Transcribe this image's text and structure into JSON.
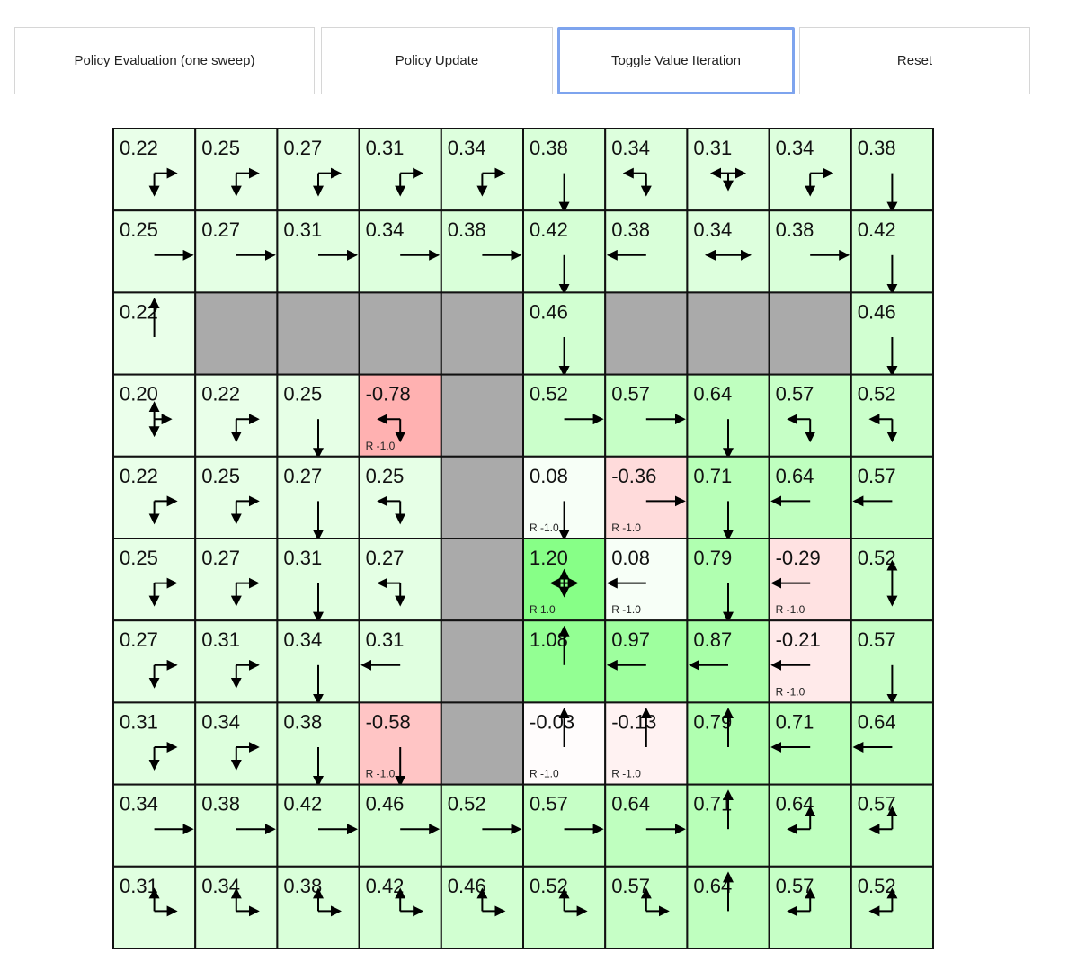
{
  "toolbar": {
    "buttons": [
      {
        "label": "Policy Evaluation (one sweep)"
      },
      {
        "label": "Policy Update"
      },
      {
        "label": "Toggle Value Iteration",
        "focused": true
      },
      {
        "label": "Reset"
      }
    ]
  },
  "gridworld": {
    "colors": {
      "wall": "#aaaaaa",
      "border": "#111111",
      "arrow": "#000000"
    },
    "values": [
      [
        "0.22",
        "0.25",
        "0.27",
        "0.31",
        "0.34",
        "0.38",
        "0.34",
        "0.31",
        "0.34",
        "0.38"
      ],
      [
        "0.25",
        "0.27",
        "0.31",
        "0.34",
        "0.38",
        "0.42",
        "0.38",
        "0.34",
        "0.38",
        "0.42"
      ],
      [
        "0.22",
        null,
        null,
        null,
        null,
        "0.46",
        null,
        null,
        null,
        "0.46"
      ],
      [
        "0.20",
        "0.22",
        "0.25",
        "-0.78",
        null,
        "0.52",
        "0.57",
        "0.64",
        "0.57",
        "0.52"
      ],
      [
        "0.22",
        "0.25",
        "0.27",
        "0.25",
        null,
        "0.08",
        "-0.36",
        "0.71",
        "0.64",
        "0.57"
      ],
      [
        "0.25",
        "0.27",
        "0.31",
        "0.27",
        null,
        "1.20",
        "0.08",
        "0.79",
        "-0.29",
        "0.52"
      ],
      [
        "0.27",
        "0.31",
        "0.34",
        "0.31",
        null,
        "1.08",
        "0.97",
        "0.87",
        "-0.21",
        "0.57"
      ],
      [
        "0.31",
        "0.34",
        "0.38",
        "-0.58",
        null,
        "-0.03",
        "-0.13",
        "0.79",
        "0.71",
        "0.64"
      ],
      [
        "0.34",
        "0.38",
        "0.42",
        "0.46",
        "0.52",
        "0.57",
        "0.64",
        "0.71",
        "0.64",
        "0.57"
      ],
      [
        "0.31",
        "0.34",
        "0.38",
        "0.42",
        "0.46",
        "0.52",
        "0.57",
        "0.64",
        "0.57",
        "0.52"
      ]
    ],
    "policy": [
      [
        "rd",
        "rd",
        "rd",
        "rd",
        "rd",
        "d",
        "ld",
        "lrd",
        "rd",
        "d"
      ],
      [
        "r",
        "r",
        "r",
        "r",
        "r",
        "d",
        "l",
        "lr",
        "r",
        "d"
      ],
      [
        "u",
        "",
        "",
        "",
        "",
        "d",
        "",
        "",
        "",
        "d"
      ],
      [
        "urd",
        "rd",
        "d",
        "ld",
        "",
        "r",
        "r",
        "d",
        "ld",
        "ld"
      ],
      [
        "rd",
        "rd",
        "d",
        "ld",
        "",
        "d",
        "r",
        "d",
        "l",
        "l"
      ],
      [
        "rd",
        "rd",
        "d",
        "ld",
        "",
        "lurd",
        "l",
        "d",
        "l",
        "ud"
      ],
      [
        "rd",
        "rd",
        "d",
        "l",
        "",
        "u",
        "l",
        "l",
        "l",
        "d"
      ],
      [
        "rd",
        "rd",
        "d",
        "d",
        "",
        "u",
        "u",
        "u",
        "l",
        "l"
      ],
      [
        "r",
        "r",
        "r",
        "r",
        "r",
        "r",
        "r",
        "u",
        "lu",
        "lu"
      ],
      [
        "ur",
        "ur",
        "ur",
        "ur",
        "ur",
        "ur",
        "ur",
        "u",
        "lu",
        "lu"
      ]
    ],
    "rewards": [
      {
        "row": 3,
        "col": 3,
        "label": "R -1.0"
      },
      {
        "row": 4,
        "col": 5,
        "label": "R -1.0"
      },
      {
        "row": 4,
        "col": 6,
        "label": "R -1.0"
      },
      {
        "row": 5,
        "col": 5,
        "label": "R 1.0"
      },
      {
        "row": 5,
        "col": 6,
        "label": "R -1.0"
      },
      {
        "row": 5,
        "col": 8,
        "label": "R -1.0"
      },
      {
        "row": 6,
        "col": 8,
        "label": "R -1.0"
      },
      {
        "row": 7,
        "col": 3,
        "label": "R -1.0"
      },
      {
        "row": 7,
        "col": 5,
        "label": "R -1.0"
      },
      {
        "row": 7,
        "col": 6,
        "label": "R -1.0"
      }
    ]
  }
}
